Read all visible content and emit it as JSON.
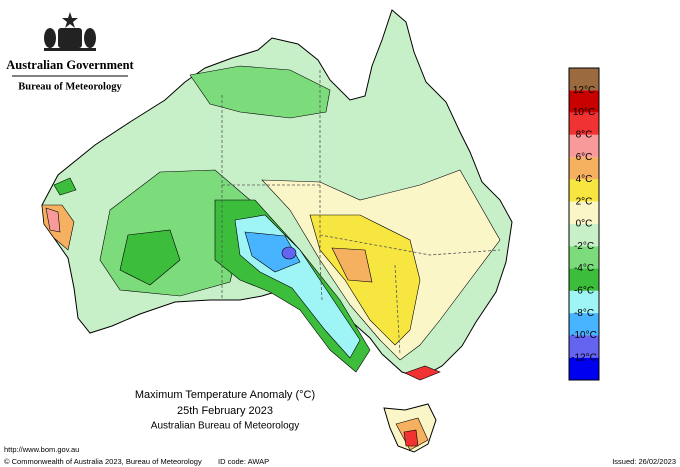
{
  "header": {
    "agency": "Australian Government",
    "bureau": "Bureau of Meteorology"
  },
  "map": {
    "title": "Maximum Temperature Anomaly (°C)",
    "date": "25th February 2023",
    "source": "Australian Bureau of Meteorology"
  },
  "legend": {
    "colors": [
      "#9b6a3e",
      "#c80000",
      "#f03232",
      "#f89a9a",
      "#f5b060",
      "#f8e640",
      "#fbf6c8",
      "#c8f0c8",
      "#7cdc7c",
      "#3cbe3c",
      "#9ff5f5",
      "#48b4ff",
      "#6464f0",
      "#0000f0"
    ],
    "labels": [
      "12°C",
      "10°C",
      "8°C",
      "6°C",
      "4°C",
      "2°C",
      "0°C",
      "-2°C",
      "-4°C",
      "-6°C",
      "-8°C",
      "-10°C",
      "-12°C"
    ]
  },
  "footer": {
    "url": "http://www.bom.gov.au",
    "copyright": "© Commonwealth of Australia 2023, Bureau of Meteorology",
    "id_code": "ID code: AWAP",
    "issued": "Issued: 26/02/2023"
  }
}
